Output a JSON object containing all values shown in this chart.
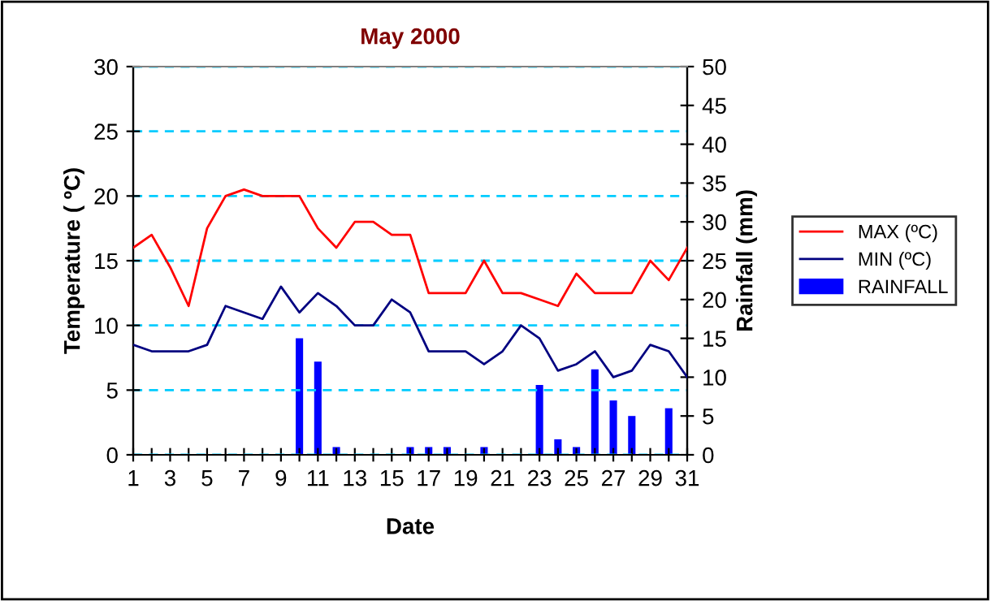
{
  "chart_data": {
    "type": "line",
    "title": "May 2000",
    "xlabel": "Date",
    "ylabel": "Temperature ( ºC)",
    "y2label": "Rainfall (mm)",
    "x": [
      1,
      2,
      3,
      4,
      5,
      6,
      7,
      8,
      9,
      10,
      11,
      12,
      13,
      14,
      15,
      16,
      17,
      18,
      19,
      20,
      21,
      22,
      23,
      24,
      25,
      26,
      27,
      28,
      29,
      30,
      31
    ],
    "series": [
      {
        "name": "MAX (ºC)",
        "color": "#ff0000",
        "values": [
          16,
          17,
          14.5,
          11.5,
          17.5,
          20,
          20.5,
          20,
          20,
          20,
          17.5,
          16,
          18,
          18,
          17,
          17,
          12.5,
          12.5,
          12.5,
          15,
          12.5,
          12.5,
          12,
          11.5,
          14,
          12.5,
          12.5,
          12.5,
          15,
          13.5,
          16
        ]
      },
      {
        "name": "MIN (ºC)",
        "color": "#000080",
        "values": [
          8.5,
          8,
          8,
          8,
          8.5,
          11.5,
          11,
          10.5,
          13,
          11,
          12.5,
          11.5,
          10,
          10,
          12,
          11,
          8,
          8,
          8,
          7,
          8,
          10,
          9,
          6.5,
          7,
          8,
          6,
          6.5,
          8.5,
          8,
          6
        ]
      },
      {
        "name": "RAINFALL",
        "color": "#0000ff",
        "type": "bar",
        "axis": "y2",
        "values": [
          0,
          0,
          0,
          0,
          0,
          0,
          0,
          0,
          0,
          15,
          12,
          1,
          0,
          0,
          0,
          1,
          1,
          1,
          0,
          1,
          0,
          0,
          9,
          2,
          1,
          11,
          7,
          5,
          0,
          6,
          0
        ]
      }
    ],
    "xlim": [
      1,
      31
    ],
    "xticks": [
      1,
      {
        "value": 2,
        "label": null
      },
      3,
      {
        "value": 4,
        "label": null
      },
      5,
      {
        "value": 6,
        "label": null
      },
      7,
      {
        "value": 8,
        "label": null
      },
      9,
      {
        "value": 10,
        "label": null
      },
      11,
      {
        "value": 12,
        "label": null
      },
      13,
      {
        "value": 14,
        "label": null
      },
      15,
      {
        "value": 16,
        "label": null
      },
      17,
      {
        "value": 18,
        "label": null
      },
      19,
      {
        "value": 20,
        "label": null
      },
      21,
      {
        "value": 22,
        "label": null
      },
      23,
      {
        "value": 24,
        "label": null
      },
      25,
      {
        "value": 26,
        "label": null
      },
      27,
      {
        "value": 28,
        "label": null
      },
      29,
      {
        "value": 30,
        "label": null
      },
      31
    ],
    "ylim": [
      0,
      30
    ],
    "yticks": [
      0,
      5,
      10,
      15,
      20,
      25,
      30
    ],
    "y2lim": [
      0,
      50
    ],
    "y2ticks": [
      0,
      5,
      10,
      15,
      20,
      25,
      30,
      35,
      40,
      45,
      50
    ],
    "grid": "y",
    "legend": "right",
    "line_style": "solid",
    "marker": "none"
  }
}
